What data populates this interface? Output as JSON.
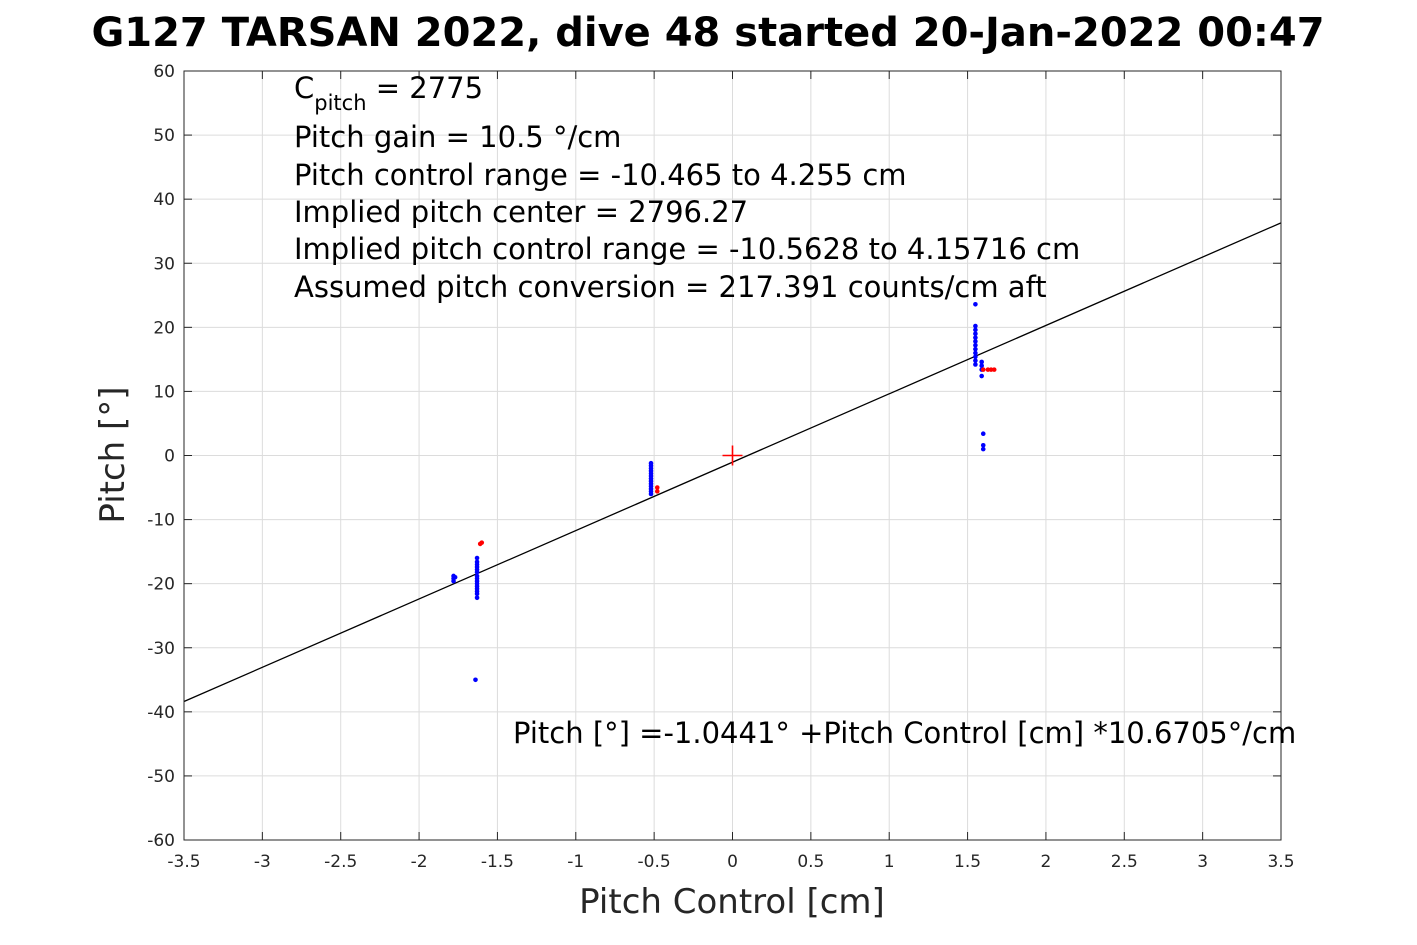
{
  "chart_data": {
    "type": "scatter",
    "title": "G127 TARSAN 2022, dive 48 started 20-Jan-2022 00:47",
    "xlabel": "Pitch Control [cm]",
    "ylabel": "Pitch [°]",
    "xlim": [
      -3.5,
      3.5
    ],
    "ylim": [
      -60,
      60
    ],
    "xticks": [
      -3.5,
      -3,
      -2.5,
      -2,
      -1.5,
      -1,
      -0.5,
      0,
      0.5,
      1,
      1.5,
      2,
      2.5,
      3,
      3.5
    ],
    "xtick_labels": [
      "-3.5",
      "-3",
      "-2.5",
      "-2",
      "-1.5",
      "-1",
      "-0.5",
      "0",
      "0.5",
      "1",
      "1.5",
      "2",
      "2.5",
      "3",
      "3.5"
    ],
    "yticks": [
      60,
      50,
      40,
      30,
      20,
      10,
      0,
      -10,
      -20,
      -30,
      -40,
      -50,
      -60
    ],
    "ytick_labels": [
      "60",
      "50",
      "40",
      "30",
      "20",
      "10",
      "0",
      "-10",
      "-20",
      "-30",
      "-40",
      "-50",
      "-60"
    ],
    "grid": true,
    "annotations": {
      "c_pitch_main": "C",
      "c_pitch_sub": "pitch",
      "c_pitch_value": " = 2775",
      "lines": [
        "Pitch gain = 10.5 °/cm",
        "Pitch control range = -10.465 to 4.255 cm",
        "Implied pitch center = 2796.27",
        "Implied pitch control range = -10.5628 to 4.15716 cm",
        "Assumed pitch conversion = 217.391 counts/cm aft"
      ],
      "fit_equation": "Pitch [°] =-1.0441° +Pitch Control [cm] *10.6705°/cm"
    },
    "fit_line": {
      "intercept": -1.0441,
      "slope": 10.6705,
      "color": "#000000"
    },
    "center_marker": {
      "x": 0,
      "y": 0,
      "color": "#ff0000"
    },
    "series": [
      {
        "color": "#0000ff",
        "points": [
          [
            -1.78,
            -18.8
          ],
          [
            -1.78,
            -19.2
          ],
          [
            -1.78,
            -19.6
          ],
          [
            -1.77,
            -19.0
          ],
          [
            -1.63,
            -16.0
          ],
          [
            -1.63,
            -16.6
          ],
          [
            -1.63,
            -17.0
          ],
          [
            -1.63,
            -17.4
          ],
          [
            -1.63,
            -17.8
          ],
          [
            -1.63,
            -18.2
          ],
          [
            -1.63,
            -18.8
          ],
          [
            -1.63,
            -19.2
          ],
          [
            -1.63,
            -19.6
          ],
          [
            -1.63,
            -20.0
          ],
          [
            -1.63,
            -20.4
          ],
          [
            -1.63,
            -20.8
          ],
          [
            -1.63,
            -21.2
          ],
          [
            -1.63,
            -21.6
          ],
          [
            -1.63,
            -22.2
          ],
          [
            -1.64,
            -35.0
          ],
          [
            -0.52,
            -1.2
          ],
          [
            -0.52,
            -1.6
          ],
          [
            -0.52,
            -2.0
          ],
          [
            -0.52,
            -2.4
          ],
          [
            -0.52,
            -2.8
          ],
          [
            -0.52,
            -3.2
          ],
          [
            -0.52,
            -3.6
          ],
          [
            -0.52,
            -4.0
          ],
          [
            -0.52,
            -4.4
          ],
          [
            -0.52,
            -4.8
          ],
          [
            -0.52,
            -5.2
          ],
          [
            -0.52,
            -5.6
          ],
          [
            -0.52,
            -6.0
          ],
          [
            1.55,
            23.6
          ],
          [
            1.55,
            20.2
          ],
          [
            1.55,
            19.6
          ],
          [
            1.55,
            19.0
          ],
          [
            1.55,
            18.4
          ],
          [
            1.55,
            17.8
          ],
          [
            1.55,
            17.2
          ],
          [
            1.55,
            16.6
          ],
          [
            1.55,
            16.0
          ],
          [
            1.55,
            15.4
          ],
          [
            1.55,
            14.8
          ],
          [
            1.55,
            14.2
          ],
          [
            1.59,
            14.6
          ],
          [
            1.59,
            14.0
          ],
          [
            1.59,
            13.4
          ],
          [
            1.59,
            12.4
          ],
          [
            1.6,
            3.4
          ],
          [
            1.6,
            1.6
          ],
          [
            1.6,
            1.0
          ]
        ]
      },
      {
        "color": "#ff0000",
        "points": [
          [
            -1.6,
            -13.6
          ],
          [
            -1.61,
            -13.8
          ],
          [
            -0.48,
            -5.0
          ],
          [
            -0.48,
            -5.6
          ],
          [
            1.6,
            13.4
          ],
          [
            1.63,
            13.4
          ],
          [
            1.65,
            13.4
          ],
          [
            1.67,
            13.4
          ]
        ]
      }
    ]
  }
}
